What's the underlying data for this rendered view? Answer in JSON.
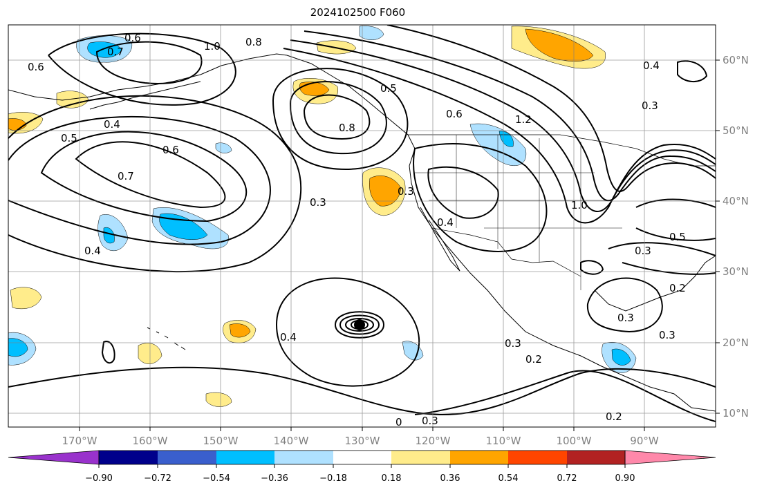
{
  "title": "2024102500 F060",
  "map": {
    "lon_labels": [
      "170°W",
      "160°W",
      "150°W",
      "140°W",
      "130°W",
      "120°W",
      "110°W",
      "100°W",
      "90°W"
    ],
    "lat_labels": [
      "60°N",
      "50°N",
      "40°N",
      "30°N",
      "20°N",
      "10°N"
    ],
    "contour_labels": [
      "0.6",
      "0.7",
      "0.8",
      "1.0",
      "0.6",
      "0.5",
      "0.4",
      "0.6",
      "0.7",
      "0.3",
      "0.4",
      "0.5",
      "0.8",
      "0.6",
      "1.2",
      "0.4",
      "0.3",
      "1.0",
      "0.5",
      "0.3",
      "0.2",
      "0.3",
      "0.3",
      "0.4",
      "0.3",
      "0.2",
      "0.3",
      "0.2",
      "0.4",
      "0.3",
      "0"
    ]
  },
  "colorbar": {
    "colors": [
      "#9932cc",
      "#00008b",
      "#3a5fcd",
      "#00bfff",
      "#afe1ff",
      "#ffffff",
      "#ffec8b",
      "#ffa500",
      "#ff4500",
      "#b22222",
      "#ff88aa"
    ],
    "tick_labels": [
      "−0.90",
      "−0.72",
      "−0.54",
      "−0.36",
      "−0.18",
      "0.18",
      "0.36",
      "0.54",
      "0.72",
      "0.90"
    ]
  }
}
